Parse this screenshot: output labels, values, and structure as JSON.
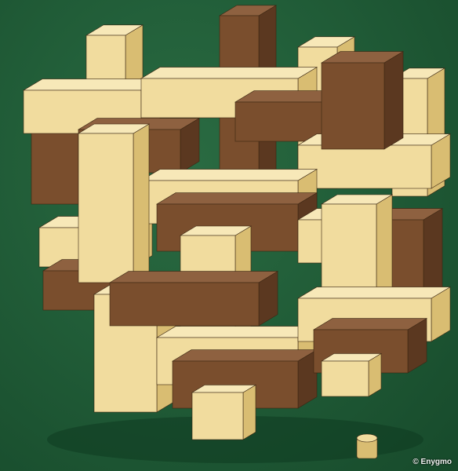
{
  "photo": {
    "subject": "wooden-interlocking-burr-puzzle",
    "background_color": "#1f5a34",
    "colors": {
      "light_wood": "#f1dc9e",
      "light_wood_side": "#d9bd72",
      "dark_wood": "#7a4e2d",
      "dark_wood_side": "#5b3820",
      "felt": "#1f5a34"
    },
    "credit": "© Enygmo"
  }
}
